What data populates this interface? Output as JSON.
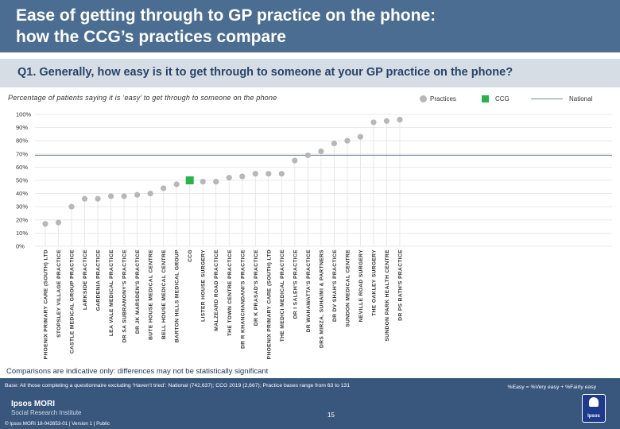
{
  "header": {
    "title": "Ease of getting through to GP practice on the phone:\nhow the CCG’s practices compare"
  },
  "question": "Q1. Generally, how easy is it to get through to someone at your GP practice on the phone?",
  "subtitle": "Percentage of patients saying it is ‘easy’ to get through to someone on the phone",
  "legend": {
    "practices": "Practices",
    "ccg": "CCG",
    "national": "National"
  },
  "colors": {
    "practice": "#b7b7b7",
    "ccg": "#2bb24c",
    "national": "#7a8a9a",
    "header": "#4a6d91",
    "footer": "#39577d"
  },
  "chart_data": {
    "type": "scatter",
    "ylim": [
      0,
      100
    ],
    "yticks": [
      "0%",
      "10%",
      "20%",
      "30%",
      "40%",
      "50%",
      "60%",
      "70%",
      "80%",
      "90%",
      "100%"
    ],
    "national_value": 69,
    "categories": [
      "PHOENIX PRIMARY CARE (SOUTH) LTD",
      "STOPSLEY VILLAGE PRACTICE",
      "CASTLE MEDICAL GROUP PRACTICE",
      "LARKSIDE PRACTICE",
      "GARDENIA PRACTICE",
      "LEA VALE MEDICAL PRACTICE",
      "DR SA SUBRAMONY'S PRACTICE",
      "DR JK MARSDEN'S PRACTICE",
      "BUTE HOUSE MEDICAL CENTRE",
      "BELL HOUSE MEDICAL CENTRE",
      "BARTON HILLS MEDICAL GROUP",
      "CCG",
      "LISTER HOUSE SURGERY",
      "MALZEARD ROAD PRACTICE",
      "THE TOWN CENTRE PRACTICE",
      "DR R KHANCHANDANI'S PRACTICE",
      "DR K PRASAD'S PRACTICE",
      "PHOENIX PRIMARY CARE (SOUTH) LTD",
      "THE MEDICI MEDICAL PRACTICE",
      "DR I SALEH'S PRACTICE",
      "DR WAHAWATTA'S PRACTICE",
      "DRS MIRZA, SUHAIMI & PARTNERS",
      "DR DV SHAH'S PRACTICE",
      "SUNDON MEDICAL CENTRE",
      "NEVILLE ROAD SURGERY",
      "THE OAKLEY SURGERY",
      "SUNDON PARK HEALTH CENTRE",
      "DR PS BATH'S PRACTICE"
    ],
    "values": [
      17,
      18,
      30,
      36,
      36,
      38,
      38,
      39,
      40,
      44,
      47,
      50,
      49,
      49,
      52,
      53,
      55,
      55,
      55,
      65,
      69,
      72,
      78,
      80,
      83,
      94,
      95,
      96
    ],
    "ccg_index": 11
  },
  "footer": {
    "note": "Comparisons are indicative only: differences may not be statistically significant",
    "base": "Base: All those completing a questionnaire excluding ‘Haven’t tried’: National (742,637); CCG 2019 (2,667); Practice bases range from 63 to 131",
    "definition": "%Easy = %Very easy + %Fairly easy",
    "brand_line1": "Ipsos MORI",
    "brand_line2": "Social Research Institute",
    "copyright": "© Ipsos MORI    18-042653-01 | Version 1 | Public",
    "page_number": "15",
    "logo_text": "Ipsos"
  }
}
